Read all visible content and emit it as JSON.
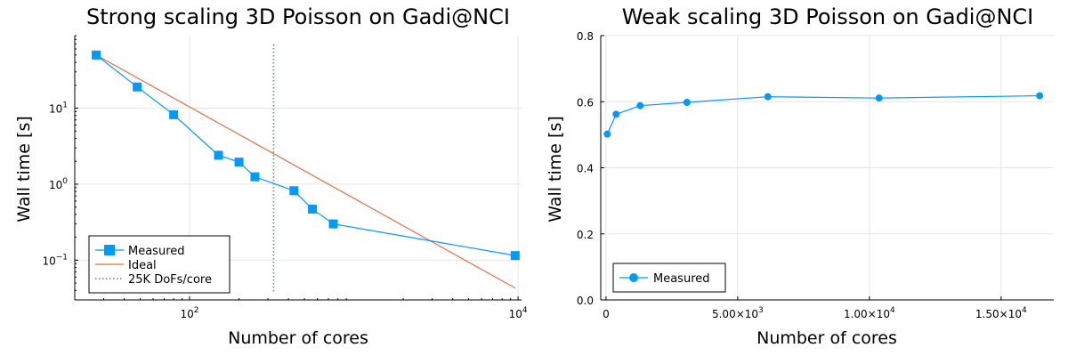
{
  "colors": {
    "measured": "#009AFA",
    "ideal": "#E26F46",
    "reference": "#3EA44E"
  },
  "chart_data": [
    {
      "type": "line",
      "title": "Strong scaling 3D Poisson on Gadi@NCI",
      "xlabel": "Number of cores",
      "ylabel": "Wall time [s]",
      "xscale": "log",
      "yscale": "log",
      "xlim": [
        20,
        10500
      ],
      "ylim": [
        0.03,
        90
      ],
      "xticks": [
        {
          "value": 100,
          "base": "10",
          "exp": "2"
        },
        {
          "value": 10000,
          "base": "10",
          "exp": "4"
        }
      ],
      "yticks": [
        {
          "value": 0.1,
          "base": "10",
          "exp": "−1"
        },
        {
          "value": 1,
          "base": "10",
          "exp": "0"
        },
        {
          "value": 10,
          "base": "10",
          "exp": "1"
        }
      ],
      "grid": true,
      "legend_position": "bottom-left",
      "series": [
        {
          "name": "Measured",
          "marker": "square",
          "x": [
            27,
            48,
            80,
            150,
            200,
            250,
            432,
            560,
            750,
            9600
          ],
          "y": [
            50,
            19,
            8.2,
            2.4,
            1.95,
            1.25,
            0.82,
            0.47,
            0.3,
            0.115
          ]
        },
        {
          "name": "Ideal",
          "x": [
            27,
            9600
          ],
          "y": [
            50,
            0.043
          ]
        },
        {
          "name": "25K DoFs/core",
          "style": "dotted",
          "xvline": 325
        }
      ]
    },
    {
      "type": "line",
      "title": "Weak scaling 3D Poisson on Gadi@NCI",
      "xlabel": "Number of cores",
      "ylabel": "Wall time [s]",
      "xscale": "linear",
      "yscale": "linear",
      "xlim": [
        -200,
        17000
      ],
      "ylim": [
        0.0,
        0.8
      ],
      "xticks": [
        {
          "value": 0,
          "label": "0"
        },
        {
          "value": 5000,
          "label": "5.00×10",
          "exp": "3"
        },
        {
          "value": 10000,
          "label": "1.00×10",
          "exp": "4"
        },
        {
          "value": 15000,
          "label": "1.50×10",
          "exp": "4"
        }
      ],
      "yticks": [
        {
          "value": 0.0,
          "label": "0.0"
        },
        {
          "value": 0.2,
          "label": "0.2"
        },
        {
          "value": 0.4,
          "label": "0.4"
        },
        {
          "value": 0.6,
          "label": "0.6"
        },
        {
          "value": 0.8,
          "label": "0.8"
        }
      ],
      "grid": true,
      "legend_position": "bottom-left",
      "series": [
        {
          "name": "Measured",
          "marker": "circle",
          "x": [
            48,
            384,
            1296,
            3072,
            6144,
            10368,
            16464
          ],
          "y": [
            0.502,
            0.562,
            0.588,
            0.598,
            0.615,
            0.611,
            0.618
          ]
        }
      ]
    }
  ]
}
